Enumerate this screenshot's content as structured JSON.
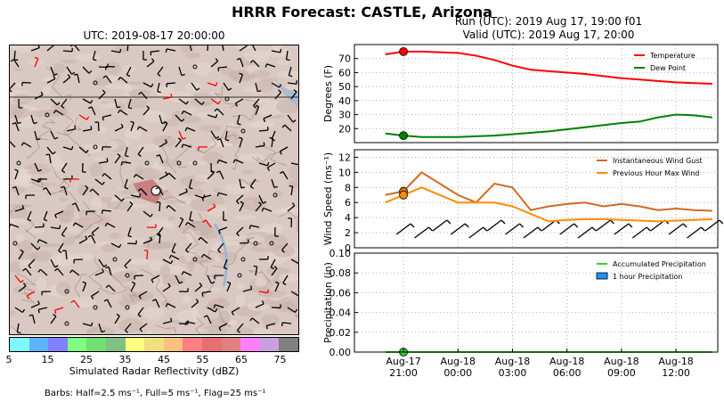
{
  "title": "HRRR Forecast: CASTLE, Arizona",
  "map": {
    "title": "UTC: 2019-08-17 20:00:00",
    "colorbar": {
      "label": "Simulated Radar Reflectivity (dBZ)",
      "ticks": [
        "5",
        "15",
        "25",
        "35",
        "45",
        "55",
        "65",
        "75"
      ],
      "colors": [
        "#7ff9ff",
        "#5fb2ff",
        "#8080ff",
        "#80ff80",
        "#70e070",
        "#80c080",
        "#ffff80",
        "#f0e080",
        "#ffc080",
        "#ff8080",
        "#e67070",
        "#e08080",
        "#ff80ff",
        "#c8a0e0",
        "#808080"
      ]
    },
    "barb_note": "Barbs: Half=2.5 ms⁻¹, Full=5 ms⁻¹, Flag=25 ms⁻¹"
  },
  "run": {
    "line1": "Run (UTC): 2019 Aug 17, 19:00 f01",
    "line2": "Valid (UTC): 2019 Aug 17, 20:00"
  },
  "chart_data": [
    {
      "type": "line",
      "ylabel": "Degrees (F)",
      "ylim": [
        10,
        80
      ],
      "yticks": [
        20,
        30,
        40,
        50,
        60,
        70
      ],
      "x_hours": [
        0,
        1,
        2,
        3,
        4,
        5,
        6,
        7,
        8,
        9,
        10,
        11,
        12,
        13,
        14,
        15,
        16,
        17,
        18
      ],
      "series": [
        {
          "name": "Temperature",
          "color": "#ff0000",
          "values": [
            73,
            75,
            75,
            74.5,
            74,
            72,
            69,
            65,
            62,
            61,
            60,
            59,
            57.5,
            56,
            55,
            54,
            53,
            52.5,
            52
          ]
        },
        {
          "name": "Dew Point",
          "color": "#008000",
          "values": [
            16.5,
            15,
            14,
            14,
            14,
            14.5,
            15,
            16,
            17,
            18,
            19.5,
            21,
            22.5,
            24,
            25,
            28,
            30,
            29.5,
            28
          ]
        }
      ],
      "legend": "top-right",
      "grid": true
    },
    {
      "type": "line",
      "ylabel": "Wind Speed (ms⁻¹)",
      "ylim": [
        0,
        13
      ],
      "yticks": [
        0,
        2,
        4,
        6,
        8,
        10,
        12
      ],
      "x_hours": [
        0,
        1,
        2,
        3,
        4,
        5,
        6,
        7,
        8,
        9,
        10,
        11,
        12,
        13,
        14,
        15,
        16,
        17,
        18
      ],
      "series": [
        {
          "name": "Instantaneous Wind Gust",
          "color": "#d2691e",
          "values": [
            7,
            7.5,
            10,
            8.5,
            7,
            6,
            8.5,
            8,
            5,
            5.5,
            5.8,
            6,
            5.5,
            5.8,
            5.5,
            5,
            5.2,
            5,
            4.9
          ]
        },
        {
          "name": "Previous Hour Max Wind",
          "color": "#ff8c00",
          "values": [
            6,
            7,
            8,
            7,
            6,
            6,
            6,
            5.5,
            4.5,
            3.5,
            3.7,
            3.8,
            3.8,
            3.7,
            3.6,
            3.5,
            3.6,
            3.7,
            3.8
          ]
        }
      ],
      "legend": "top-right",
      "grid": true
    },
    {
      "type": "line",
      "ylabel": "Precipitation (in)",
      "ylim": [
        0,
        0.1
      ],
      "yticks": [
        "0.00",
        "0.02",
        "0.04",
        "0.06",
        "0.08",
        "0.10"
      ],
      "x_hours": [
        0,
        1,
        2,
        3,
        4,
        5,
        6,
        7,
        8,
        9,
        10,
        11,
        12,
        13,
        14,
        15,
        16,
        17,
        18
      ],
      "series": [
        {
          "name": "Accumulated Precipitation",
          "color": "#32cd32",
          "values": [
            0,
            0,
            0,
            0,
            0,
            0,
            0,
            0,
            0,
            0,
            0,
            0,
            0,
            0,
            0,
            0,
            0,
            0,
            0
          ]
        },
        {
          "name": "1 hour Precipitation",
          "color": "#1e90ff",
          "values": [
            0,
            0,
            0,
            0,
            0,
            0,
            0,
            0,
            0,
            0,
            0,
            0,
            0,
            0,
            0,
            0,
            0,
            0,
            0
          ]
        }
      ],
      "legend": "top-right",
      "grid": true
    }
  ],
  "xaxis": {
    "tick_hours": [
      1,
      4,
      7,
      10,
      13,
      16
    ],
    "tick_labels": [
      [
        "Aug-17",
        "21:00"
      ],
      [
        "Aug-18",
        "00:00"
      ],
      [
        "Aug-18",
        "03:00"
      ],
      [
        "Aug-18",
        "06:00"
      ],
      [
        "Aug-18",
        "09:00"
      ],
      [
        "Aug-18",
        "12:00"
      ]
    ]
  }
}
